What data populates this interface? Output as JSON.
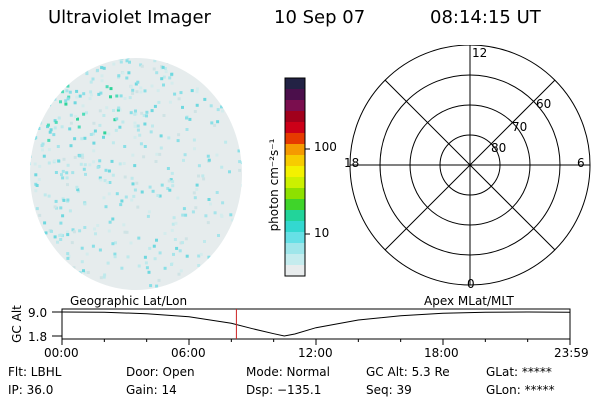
{
  "header": {
    "instrument": "Ultraviolet Imager",
    "date": "10 Sep 07",
    "time": "08:14:15 UT"
  },
  "colorbar": {
    "unit_label": "photon cm⁻²s⁻¹",
    "tick_labels": [
      "100",
      "10"
    ],
    "colors": [
      "#222244",
      "#4b0f4b",
      "#7a0e4e",
      "#a1001c",
      "#cc0018",
      "#e63a00",
      "#f59a00",
      "#f7cc00",
      "#f3f100",
      "#ccf000",
      "#8ee000",
      "#3fd42a",
      "#22d49a",
      "#33d8d0",
      "#66e0e6",
      "#9fe6ea",
      "#c5ecee",
      "#e8eced"
    ]
  },
  "polar_grid": {
    "mlt_labels": [
      "12",
      "18",
      "6",
      "0"
    ],
    "mlat_labels": [
      "60",
      "70",
      "80"
    ]
  },
  "timeline": {
    "y_axis_label": "GC Alt",
    "y_tick_labels": [
      "9.0",
      "1.8"
    ],
    "left_caption": "Geographic Lat/Lon",
    "right_caption": "Apex MLat/MLT",
    "x_tick_labels": [
      "00:00",
      "06:00",
      "12:00",
      "18:00",
      "23:59"
    ]
  },
  "status": {
    "flt": "Flt: LBHL",
    "ip": "IP: 36.0",
    "door": "Door: Open",
    "gain": "Gain: 14",
    "mode": "Mode: Normal",
    "dsp": "Dsp: −135.1",
    "gc_alt": "GC Alt: 5.3 Re",
    "seq": "Seq: 39",
    "glat": "GLat: *****",
    "glon": "GLon: *****"
  },
  "chart_data": {
    "type": "line",
    "title": "",
    "xlabel": "",
    "ylabel": "GC Alt",
    "x_ticks": [
      "00:00",
      "06:00",
      "12:00",
      "18:00",
      "23:59"
    ],
    "ylim": [
      1.8,
      9.0
    ],
    "x_hours": [
      0,
      2,
      4,
      6,
      8,
      9,
      10,
      10.5,
      11,
      12,
      14,
      16,
      18,
      20,
      22,
      23.98
    ],
    "y": [
      9.0,
      8.9,
      8.5,
      7.6,
      5.6,
      4.0,
      2.5,
      1.8,
      2.4,
      4.3,
      6.6,
      7.9,
      8.6,
      8.9,
      9.0,
      8.9
    ],
    "current_time_hours": 8.24,
    "current_time_color": "#cc2222"
  }
}
